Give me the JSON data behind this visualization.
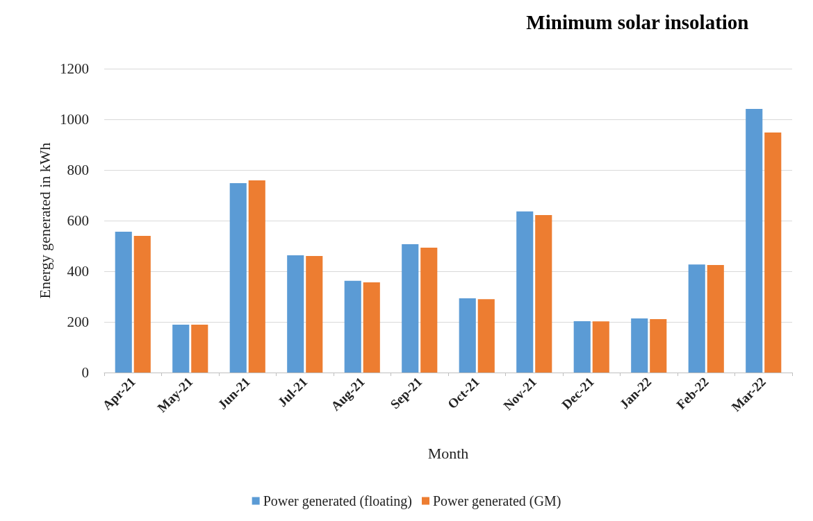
{
  "chart_data": {
    "type": "bar",
    "title": "Minimum solar insolation",
    "xlabel": "Month",
    "ylabel": "Energy generated in kWh",
    "categories": [
      "Apr-21",
      "May-21",
      "Jun-21",
      "Jul-21",
      "Aug-21",
      "Sep-21",
      "Oct-21",
      "Nov-21",
      "Dec-21",
      "Jan-22",
      "Feb-22",
      "Mar-22"
    ],
    "series": [
      {
        "name": "Power generated (floating)",
        "color": "#5b9bd5",
        "values": [
          556,
          189,
          748,
          463,
          362,
          507,
          293,
          636,
          203,
          214,
          427,
          1041
        ]
      },
      {
        "name": "Power generated (GM)",
        "color": "#ed7d31",
        "values": [
          540,
          189,
          759,
          460,
          356,
          493,
          290,
          622,
          202,
          211,
          425,
          948
        ]
      }
    ],
    "ylim": [
      0,
      1200
    ],
    "yticks": [
      0,
      200,
      400,
      600,
      800,
      1000,
      1200
    ],
    "grid": "y",
    "legend": "bottom"
  }
}
